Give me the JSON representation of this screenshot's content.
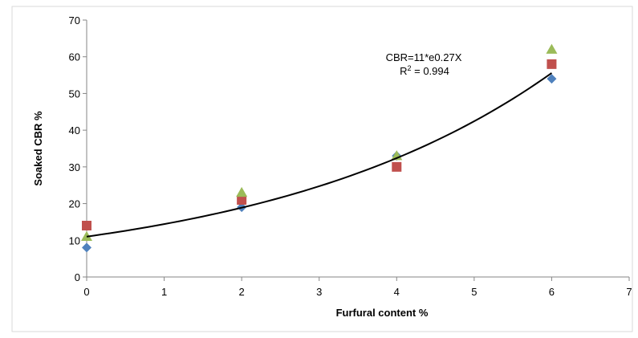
{
  "chart_data": {
    "type": "scatter",
    "xlabel": "Furfural content %",
    "ylabel": "Soaked CBR %",
    "xlim": [
      0,
      7
    ],
    "ylim": [
      0,
      70
    ],
    "xticks": [
      0,
      1,
      2,
      3,
      4,
      5,
      6,
      7
    ],
    "yticks": [
      0,
      10,
      20,
      30,
      40,
      50,
      60,
      70
    ],
    "grid": false,
    "legend": "none",
    "series": [
      {
        "marker": "diamond",
        "color": "#4f81bd",
        "points": [
          [
            0,
            8
          ],
          [
            2,
            19
          ],
          [
            4,
            33
          ],
          [
            6,
            54
          ]
        ]
      },
      {
        "marker": "square",
        "color": "#c0504d",
        "points": [
          [
            0,
            14
          ],
          [
            2,
            21
          ],
          [
            4,
            30
          ],
          [
            6,
            58
          ]
        ]
      },
      {
        "marker": "triangle",
        "color": "#9bbb59",
        "points": [
          [
            0,
            11
          ],
          [
            2,
            23
          ],
          [
            4,
            33
          ],
          [
            6,
            62
          ]
        ]
      }
    ],
    "trendline": {
      "type": "exponential",
      "a": 11,
      "b": 0.27,
      "x_range": [
        0,
        6
      ],
      "color": "#000000",
      "equation_label": "CBR=11*e0.27X",
      "r2_prefix": "R",
      "r2_sup": "2",
      "r2_suffix": " = 0.994"
    }
  }
}
